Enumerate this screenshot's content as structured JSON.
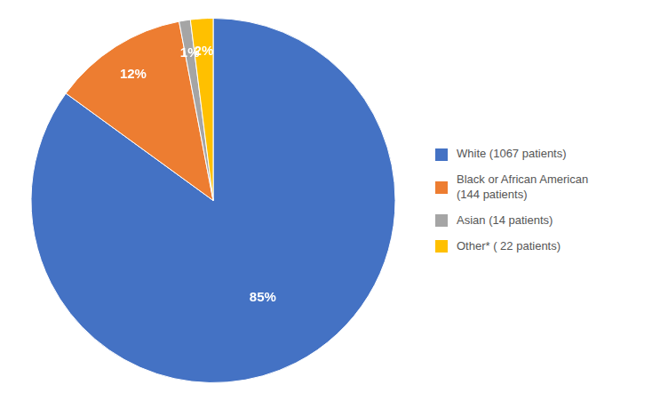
{
  "chart_data": {
    "type": "pie",
    "categories": [
      "White (1067 patients)",
      "Black or African American\n(144 patients)",
      "Asian (14 patients)",
      "Other* ( 22 patients)"
    ],
    "values": [
      85,
      12,
      1,
      2
    ],
    "value_labels": [
      "85%",
      "12%",
      "1%",
      "2%"
    ],
    "colors": [
      "#4472C4",
      "#ED7D31",
      "#A5A5A5",
      "#FFC000"
    ],
    "data_labels": true,
    "legend": "right"
  }
}
